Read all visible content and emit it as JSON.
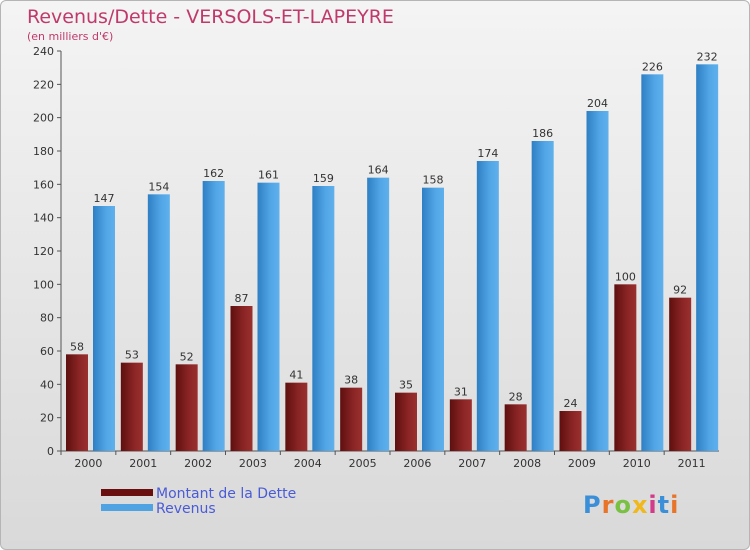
{
  "header": {
    "title": "Revenus/Dette - VERSOLS-ET-LAPEYRE",
    "subtitle": "(en milliers d'€)"
  },
  "legend": {
    "debt_label": "Montant de la Dette",
    "revenue_label": "Revenus"
  },
  "logo": {
    "text": "Proxiti"
  },
  "colors": {
    "debt": "#8b2020",
    "revenue": "#4fa3e3",
    "title": "#c0396b",
    "legend_text": "#4a5bd6"
  },
  "chart_data": {
    "type": "bar",
    "categories": [
      "2000",
      "2001",
      "2002",
      "2003",
      "2004",
      "2005",
      "2006",
      "2007",
      "2008",
      "2009",
      "2010",
      "2011"
    ],
    "series": [
      {
        "name": "Montant de la Dette",
        "values": [
          58,
          53,
          52,
          87,
          41,
          38,
          35,
          31,
          28,
          24,
          100,
          92
        ]
      },
      {
        "name": "Revenus",
        "values": [
          147,
          154,
          162,
          161,
          159,
          164,
          158,
          174,
          186,
          204,
          226,
          232
        ]
      }
    ],
    "yticks": [
      0,
      20,
      40,
      60,
      80,
      100,
      120,
      140,
      160,
      180,
      200,
      220,
      240
    ],
    "ylim": [
      0,
      240
    ],
    "grid": false,
    "legend_position": "bottom-left"
  }
}
